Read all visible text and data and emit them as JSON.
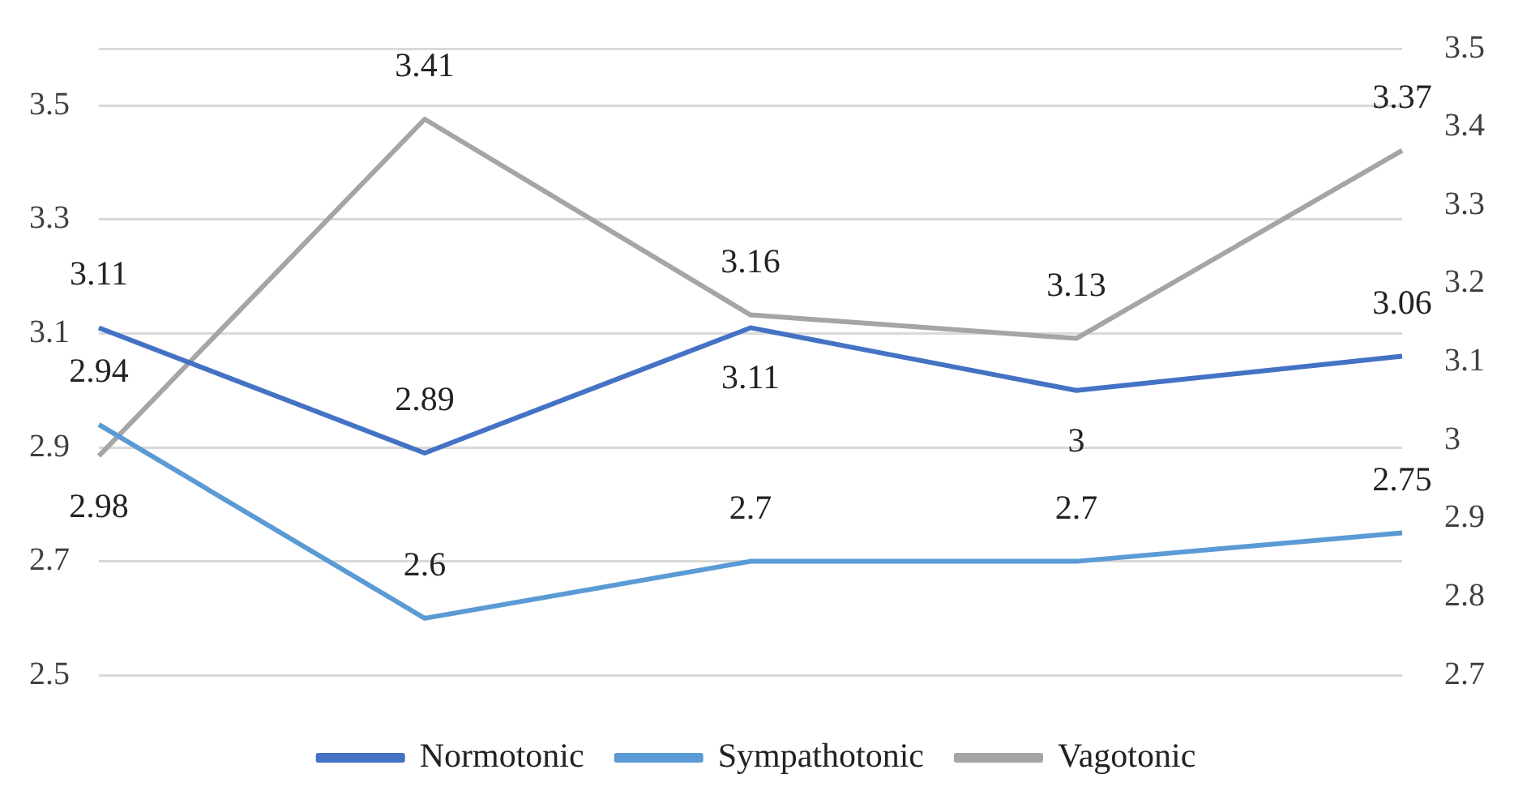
{
  "chart_data": {
    "type": "line",
    "categories": [
      null,
      null,
      null,
      null,
      null
    ],
    "series": [
      {
        "name": "Normotonic",
        "color": "#4472c4",
        "values": [
          3.11,
          2.89,
          3.11,
          3,
          3.06
        ]
      },
      {
        "name": "Sympathotonic",
        "color": "#5b9bd5",
        "values": [
          2.94,
          2.6,
          2.7,
          2.7,
          2.75
        ]
      },
      {
        "name": "Vagotonic",
        "color": "#a5a5a5",
        "values": [
          2.98,
          3.41,
          3.16,
          3.13,
          3.37
        ],
        "axis": "y2"
      }
    ],
    "ylim": [
      2.5,
      3.6
    ],
    "yticks": [
      2.5,
      2.7,
      2.9,
      3.1,
      3.3,
      3.5,
      {
        "value": 3.6,
        "label": null
      }
    ],
    "y2lim": [
      2.7,
      3.5
    ],
    "y2ticks": [
      2.7,
      2.8,
      2.9,
      3,
      3.1,
      3.2,
      3.3,
      3.4,
      3.5
    ],
    "grid": "y",
    "legend": "bottom",
    "marker": "none",
    "line_style": "solid",
    "data_labels": true
  }
}
